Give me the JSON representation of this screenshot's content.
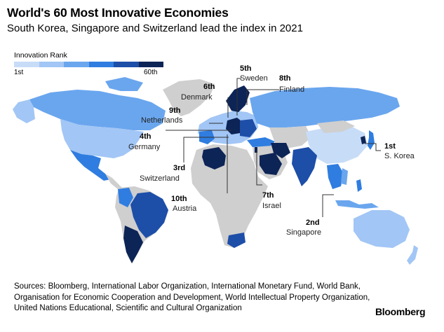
{
  "title": "World's 60 Most Innovative Economies",
  "subtitle": "South Korea, Singapore and Switzerland lead the index in 2021",
  "legend": {
    "title": "Innovation Rank",
    "min_label": "1st",
    "max_label": "60th",
    "colors": [
      "#c7dcf7",
      "#a2c6f5",
      "#6aa6ee",
      "#2f7de0",
      "#1d4ea8",
      "#0d2456"
    ]
  },
  "colors": {
    "no_data": "#cfcfcf",
    "ocean": "#ffffff",
    "leader_line": "#333333"
  },
  "callouts": [
    {
      "rank": "1st",
      "country": "S. Korea"
    },
    {
      "rank": "2nd",
      "country": "Singapore"
    },
    {
      "rank": "3rd",
      "country": "Switzerland"
    },
    {
      "rank": "4th",
      "country": "Germany"
    },
    {
      "rank": "5th",
      "country": "Sweden"
    },
    {
      "rank": "6th",
      "country": "Denmark"
    },
    {
      "rank": "7th",
      "country": "Israel"
    },
    {
      "rank": "8th",
      "country": "Finland"
    },
    {
      "rank": "9th",
      "country": "Netherlands"
    },
    {
      "rank": "10th",
      "country": "Austria"
    }
  ],
  "sources": [
    "Sources: Bloomberg, International Labor Organization, International Monetary Fund, World Bank,",
    "Organisation for Economic Cooperation and Development, World Intellectual Property Organization,",
    "United Nations Educational, Scientific and Cultural Organization"
  ],
  "brand": "Bloomberg"
}
